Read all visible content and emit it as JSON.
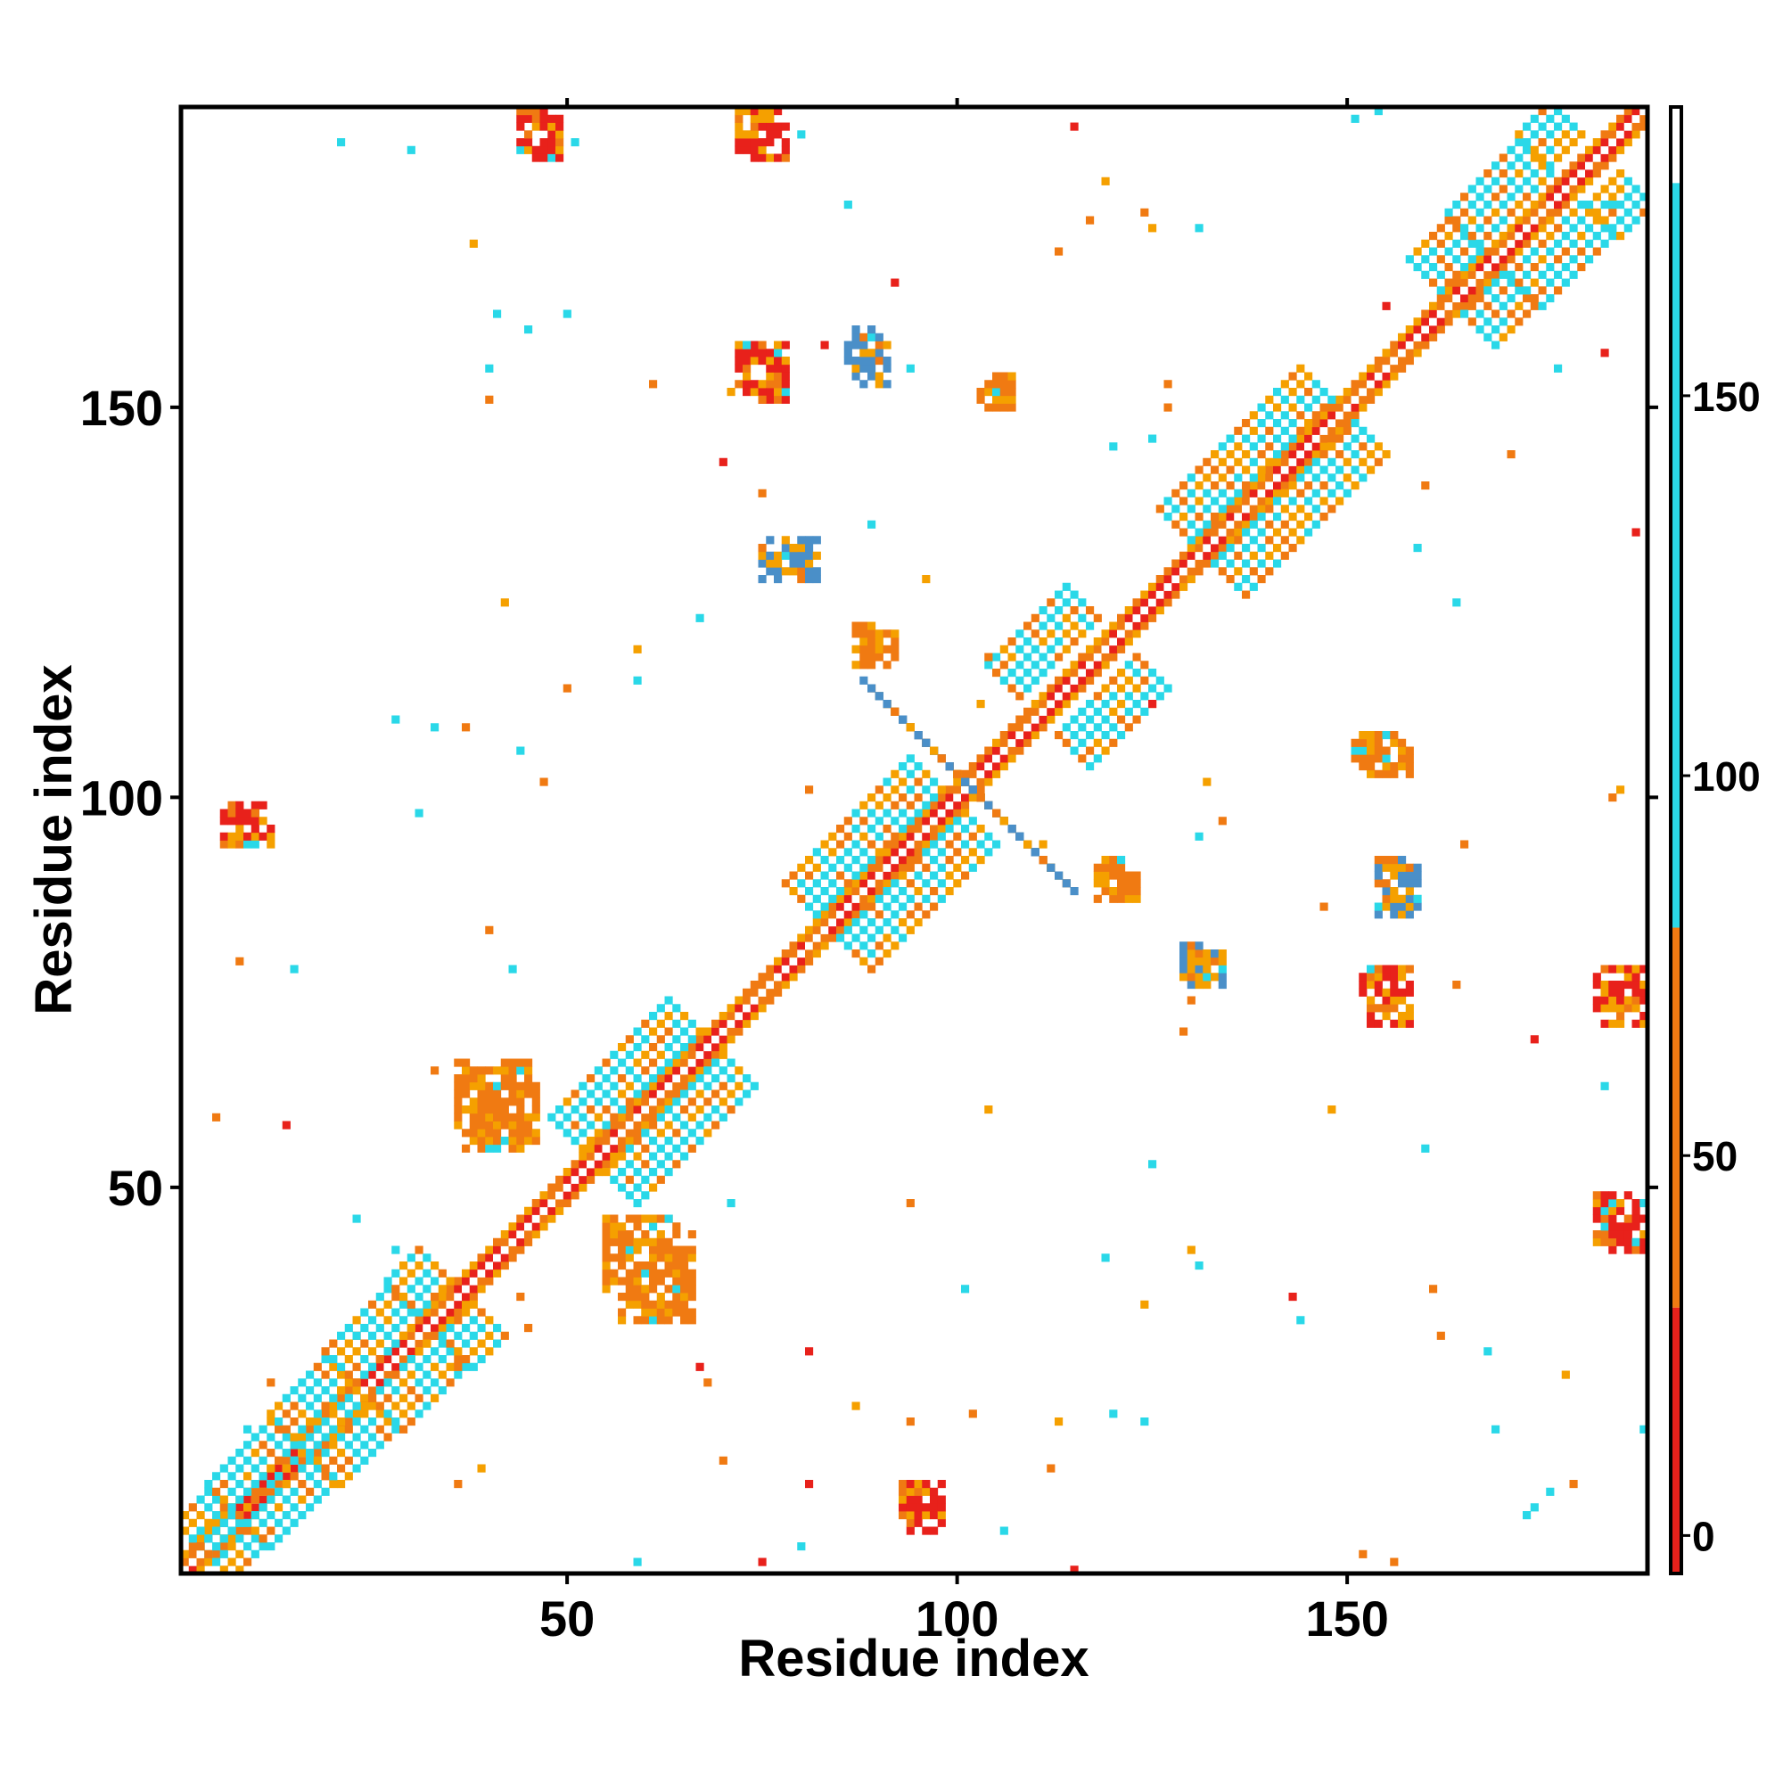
{
  "chart_data": {
    "type": "heatmap",
    "title": "",
    "xlabel": "Residue index",
    "ylabel": "Residue index",
    "xlim": [
      1,
      188
    ],
    "ylim": [
      1,
      188
    ],
    "x_ticks": [
      50,
      100,
      150
    ],
    "y_ticks": [
      50,
      100,
      150
    ],
    "grid": false,
    "legend": "right",
    "colorbar": {
      "ticks": [
        0,
        50,
        100,
        150
      ],
      "range": [
        -5,
        188
      ],
      "bands": [
        {
          "from": -5,
          "to": 30,
          "color": "#e8211b"
        },
        {
          "from": 30,
          "to": 80,
          "color": "#f07a12"
        },
        {
          "from": 80,
          "to": 178,
          "color": "#2ad8e8"
        },
        {
          "from": 178,
          "to": 188,
          "color": "#ffffff"
        }
      ],
      "colors": [
        "#e8211b",
        "#f07a12",
        "#f5a000",
        "#2ad8e8",
        "#4a8fc8",
        "#ffffff"
      ]
    },
    "features": [
      {
        "kind": "diagonal",
        "from": 1,
        "to": 188
      },
      {
        "kind": "band",
        "from": [
          2,
          2
        ],
        "to": [
          33,
          37
        ],
        "color": "#2ad8e8"
      },
      {
        "kind": "band",
        "from": [
          50,
          54
        ],
        "to": [
          65,
          69
        ],
        "color": "#2ad8e8"
      },
      {
        "kind": "band",
        "from": [
          80,
          84
        ],
        "to": [
          96,
          100
        ],
        "color": "#2ad8e8"
      },
      {
        "kind": "band",
        "from": [
          106,
          112
        ],
        "to": [
          116,
          122
        ],
        "color": "#2ad8e8"
      },
      {
        "kind": "band",
        "from": [
          128,
          132
        ],
        "to": [
          146,
          150
        ],
        "color": "#2ad8e8"
      },
      {
        "kind": "band",
        "from": [
          160,
          164
        ],
        "to": [
          178,
          184
        ],
        "color": "#2ad8e8"
      },
      {
        "kind": "band",
        "from": [
          90,
          110
        ],
        "to": [
          104,
          96
        ],
        "color": "#4a8fc8"
      },
      {
        "kind": "patch",
        "x": [
          44,
          49
        ],
        "y": [
          182,
          188
        ],
        "color": "#e8211b"
      },
      {
        "kind": "patch",
        "x": [
          72,
          78
        ],
        "y": [
          182,
          188
        ],
        "color": "#e8211b"
      },
      {
        "kind": "patch",
        "x": [
          72,
          78
        ],
        "y": [
          151,
          158
        ],
        "color": "#e8211b"
      },
      {
        "kind": "patch",
        "x": [
          86,
          91
        ],
        "y": [
          153,
          160
        ],
        "color": "#4a8fc8"
      },
      {
        "kind": "patch",
        "x": [
          103,
          107
        ],
        "y": [
          150,
          154
        ],
        "color": "#f07a12"
      },
      {
        "kind": "patch",
        "x": [
          75,
          82
        ],
        "y": [
          128,
          133
        ],
        "color": "#4a8fc8"
      },
      {
        "kind": "patch",
        "x": [
          87,
          92
        ],
        "y": [
          117,
          122
        ],
        "color": "#f07a12"
      },
      {
        "kind": "patch",
        "x": [
          6,
          12
        ],
        "y": [
          94,
          99
        ],
        "color": "#e8211b"
      },
      {
        "kind": "patch",
        "x": [
          118,
          123
        ],
        "y": [
          87,
          92
        ],
        "color": "#f07a12"
      },
      {
        "kind": "patch",
        "x": [
          129,
          134
        ],
        "y": [
          76,
          81
        ],
        "color": "#4a8fc8"
      },
      {
        "kind": "patch",
        "x": [
          152,
          158
        ],
        "y": [
          71,
          78
        ],
        "color": "#e8211b"
      },
      {
        "kind": "patch",
        "x": [
          154,
          159
        ],
        "y": [
          85,
          92
        ],
        "color": "#4a8fc8"
      },
      {
        "kind": "patch",
        "x": [
          182,
          188
        ],
        "y": [
          71,
          78
        ],
        "color": "#e8211b"
      },
      {
        "kind": "patch",
        "x": [
          182,
          188
        ],
        "y": [
          42,
          49
        ],
        "color": "#e8211b"
      },
      {
        "kind": "patch",
        "x": [
          93,
          98
        ],
        "y": [
          6,
          12
        ],
        "color": "#e8211b"
      },
      {
        "kind": "patch",
        "x": [
          151,
          158
        ],
        "y": [
          103,
          108
        ],
        "color": "#f07a12"
      },
      {
        "kind": "patch",
        "x": [
          36,
          46
        ],
        "y": [
          55,
          66
        ],
        "color": "#f07a12"
      },
      {
        "kind": "patch",
        "x": [
          55,
          66
        ],
        "y": [
          33,
          46
        ],
        "color": "#f07a12"
      }
    ]
  }
}
